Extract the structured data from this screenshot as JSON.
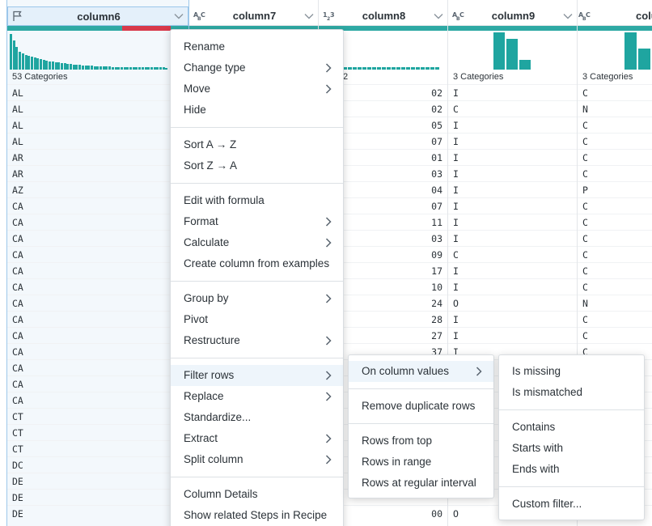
{
  "columns": [
    {
      "name": "column6",
      "type_icon": "flag-icon",
      "category_label": "53 Categories",
      "values": [
        "AL",
        "AL",
        "AL",
        "AL",
        "AR",
        "AR",
        "AZ",
        "CA",
        "CA",
        "CA",
        "CA",
        "CA",
        "CA",
        "CA",
        "CA",
        "CA",
        "CA",
        "CA",
        "CA",
        "CA",
        "CT",
        "CT",
        "CT",
        "DC",
        "DE",
        "DE",
        "DE"
      ]
    },
    {
      "name": "column7",
      "type_icon": "string-type-icon",
      "category_label": "",
      "values": []
    },
    {
      "name": "column8",
      "type_icon": "integer-type-icon",
      "category_label": "2",
      "values": [
        "02",
        "02",
        "05",
        "07",
        "01",
        "03",
        "04",
        "07",
        "11",
        "03",
        "09",
        "17",
        "10",
        "24",
        "28",
        "27",
        "37",
        "",
        "",
        "",
        "",
        "",
        "",
        "",
        "",
        "",
        "00"
      ]
    },
    {
      "name": "column9",
      "type_icon": "string-type-icon",
      "category_label": "3 Categories",
      "values": [
        "I",
        "C",
        "I",
        "I",
        "I",
        "I",
        "I",
        "I",
        "I",
        "I",
        "C",
        "I",
        "I",
        "O",
        "I",
        "I",
        "I",
        "",
        "",
        "",
        "",
        "",
        "",
        "",
        "",
        "",
        "O"
      ]
    },
    {
      "name": "column",
      "type_icon": "string-type-icon",
      "category_label": "3 Categories",
      "values": [
        "C",
        "N",
        "C",
        "C",
        "C",
        "C",
        "P",
        "C",
        "C",
        "C",
        "C",
        "C",
        "C",
        "N",
        "C",
        "C",
        "C",
        "",
        "",
        "",
        "",
        "",
        "",
        "",
        "",
        "",
        ""
      ]
    }
  ],
  "type_glyphs": {
    "string": [
      "A",
      "B",
      "C"
    ],
    "integer": [
      "1",
      "2",
      "3"
    ]
  },
  "colors": {
    "accent": "#1fa5a0",
    "mismatch": "#d8394a",
    "selection": "#9cc7ea"
  },
  "column_menu": {
    "groups": [
      [
        {
          "label": "Rename",
          "submenu": false
        },
        {
          "label": "Change type",
          "submenu": true
        },
        {
          "label": "Move",
          "submenu": true
        },
        {
          "label": "Hide",
          "submenu": false
        }
      ],
      [
        {
          "label": "Sort A → Z",
          "submenu": false
        },
        {
          "label": "Sort Z → A",
          "submenu": false
        }
      ],
      [
        {
          "label": "Edit with formula",
          "submenu": false
        },
        {
          "label": "Format",
          "submenu": true
        },
        {
          "label": "Calculate",
          "submenu": true
        },
        {
          "label": "Create column from examples",
          "submenu": false
        }
      ],
      [
        {
          "label": "Group by",
          "submenu": true
        },
        {
          "label": "Pivot",
          "submenu": false
        },
        {
          "label": "Restructure",
          "submenu": true
        }
      ],
      [
        {
          "label": "Filter rows",
          "submenu": true,
          "active": true
        },
        {
          "label": "Replace",
          "submenu": true
        },
        {
          "label": "Standardize...",
          "submenu": false
        },
        {
          "label": "Extract",
          "submenu": true
        },
        {
          "label": "Split column",
          "submenu": true
        }
      ],
      [
        {
          "label": "Column Details",
          "submenu": false
        },
        {
          "label": "Show related Steps in Recipe",
          "submenu": false
        }
      ]
    ]
  },
  "filter_menu": {
    "groups": [
      [
        {
          "label": "On column values",
          "submenu": true,
          "active": true
        }
      ],
      [
        {
          "label": "Remove duplicate rows",
          "submenu": false
        }
      ],
      [
        {
          "label": "Rows from top",
          "submenu": false
        },
        {
          "label": "Rows in range",
          "submenu": false
        },
        {
          "label": "Rows at regular interval",
          "submenu": false
        }
      ]
    ]
  },
  "values_menu": {
    "groups": [
      [
        {
          "label": "Is missing",
          "submenu": false
        },
        {
          "label": "Is mismatched",
          "submenu": false
        }
      ],
      [
        {
          "label": "Contains",
          "submenu": false
        },
        {
          "label": "Starts with",
          "submenu": false
        },
        {
          "label": "Ends with",
          "submenu": false
        }
      ],
      [
        {
          "label": "Custom filter...",
          "submenu": false
        }
      ]
    ]
  }
}
